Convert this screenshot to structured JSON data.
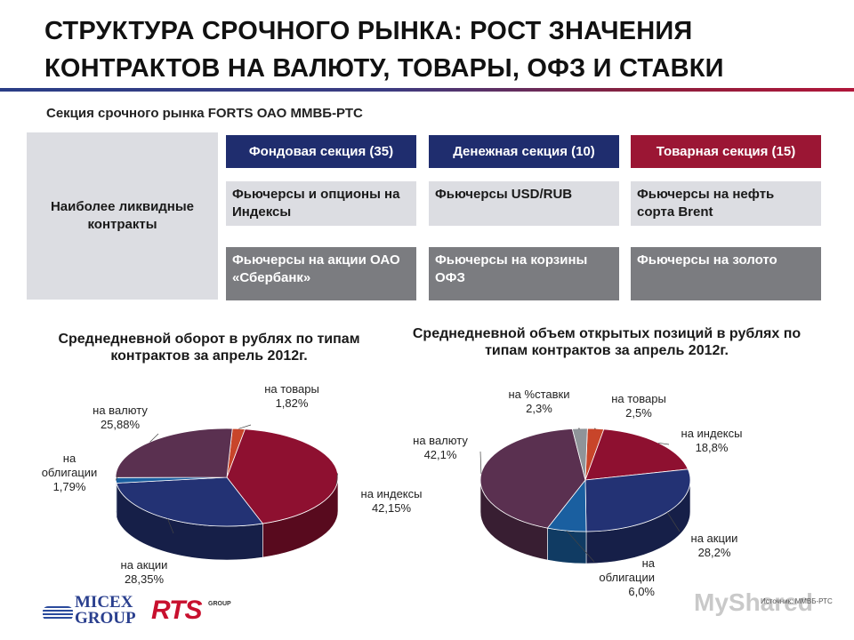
{
  "header": {
    "title_line1": "СТРУКТУРА СРОЧНОГО РЫНКА: РОСТ ЗНАЧЕНИЯ",
    "title_line2": "КОНТРАКТОВ НА ВАЛЮТУ, ТОВАРЫ, ОФЗ И СТАВКИ",
    "subtitle": "Секция срочного рынка FORTS ОАО ММВБ-РТС"
  },
  "table": {
    "row_header": "Наиболее ликвидные контракты",
    "columns": [
      {
        "title": "Фондовая секция (35)",
        "color": "#1f2d6e",
        "items": [
          "Фьючерсы и опционы на Индексы",
          "Фьючерсы на акции ОАО «Сбербанк»"
        ]
      },
      {
        "title": "Денежная секция (10)",
        "color": "#1f2d6e",
        "items": [
          "Фьючерсы USD/RUB",
          "Фьючерсы на корзины ОФЗ"
        ]
      },
      {
        "title": "Товарная секция (15)",
        "color": "#9b1634",
        "items": [
          "Фьючерсы на нефть сорта Brent",
          "Фьючерсы на золото"
        ]
      }
    ]
  },
  "chart_data": [
    {
      "type": "pie",
      "title": "Среднедневной оборот в рублях по типам контрактов за апрель 2012г.",
      "slices": [
        {
          "name": "на товары",
          "value": 1.82,
          "label": "1,82%",
          "color": "#c8452a"
        },
        {
          "name": "на индексы",
          "value": 42.15,
          "label": "42,15%",
          "color": "#8e1030"
        },
        {
          "name": "на акции",
          "value": 28.35,
          "label": "28,35%",
          "color": "#233274"
        },
        {
          "name": "на облигации",
          "value": 1.79,
          "label": "1,79%",
          "color": "#1a5fa0"
        },
        {
          "name": "на валюту",
          "value": 25.88,
          "label": "25,88%",
          "color": "#5a3050"
        }
      ]
    },
    {
      "type": "pie",
      "title": "Среднедневной объем открытых позиций в рублях по типам контрактов за апрель 2012г.",
      "slices": [
        {
          "name": "на товары",
          "value": 2.5,
          "label": "2,5%",
          "color": "#c8452a"
        },
        {
          "name": "на индексы",
          "value": 18.8,
          "label": "18,8%",
          "color": "#8e1030"
        },
        {
          "name": "на акции",
          "value": 28.2,
          "label": "28,2%",
          "color": "#233274"
        },
        {
          "name": "на облигации",
          "value": 6.0,
          "label": "6,0%",
          "color": "#1a5fa0"
        },
        {
          "name": "на валюту",
          "value": 42.1,
          "label": "42,1%",
          "color": "#5a3050"
        },
        {
          "name": "на %ставки",
          "value": 2.3,
          "label": "2,3%",
          "color": "#8f9499"
        }
      ]
    }
  ],
  "footer": {
    "logo1_line1": "MICEX",
    "logo1_line2": "GROUP",
    "logo2": "RTS",
    "logo2_sub": "GROUP",
    "watermark": "MyShared",
    "source": "Источник: ММВБ-РТС"
  }
}
